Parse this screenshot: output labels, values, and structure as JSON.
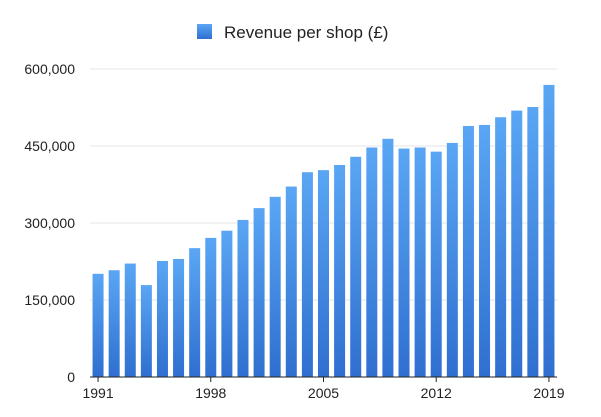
{
  "chart_data": {
    "type": "bar",
    "title": "",
    "xlabel": "",
    "ylabel": "",
    "legend": {
      "position": "top-center"
    },
    "grid": {
      "y": true,
      "x": false
    },
    "ylim": [
      0,
      600000
    ],
    "y_ticks": [
      {
        "value": 0,
        "label": "0"
      },
      {
        "value": 150000,
        "label": "150,000"
      },
      {
        "value": 300000,
        "label": "300,000"
      },
      {
        "value": 450000,
        "label": "450,000"
      },
      {
        "value": 600000,
        "label": "600,000"
      }
    ],
    "x_tick_labels": [
      "1991",
      "1998",
      "2005",
      "2012",
      "2019"
    ],
    "categories": [
      1991,
      1992,
      1993,
      1994,
      1995,
      1996,
      1997,
      1998,
      1999,
      2000,
      2001,
      2002,
      2003,
      2004,
      2005,
      2006,
      2007,
      2008,
      2009,
      2010,
      2011,
      2012,
      2013,
      2014,
      2015,
      2016,
      2017,
      2018,
      2019
    ],
    "series": [
      {
        "name": "Revenue per shop (£)",
        "color": "#3d80dc",
        "values": [
          201000,
          208000,
          221000,
          179000,
          226000,
          230000,
          251000,
          271000,
          285000,
          306000,
          329000,
          351000,
          371000,
          399000,
          403000,
          413000,
          429000,
          447000,
          464000,
          445000,
          447000,
          439000,
          456000,
          489000,
          491000,
          506000,
          519000,
          526000,
          569000
        ]
      }
    ]
  }
}
